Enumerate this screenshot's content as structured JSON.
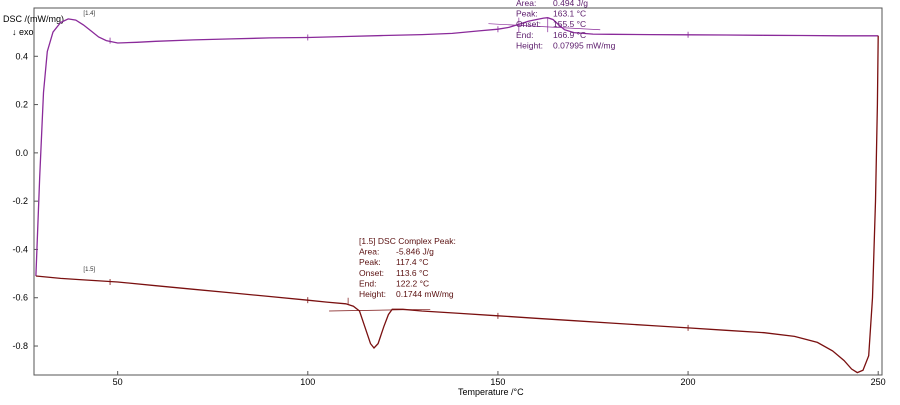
{
  "chart_data": {
    "type": "line",
    "title": "",
    "ylabel": "DSC /(mW/mg)",
    "exo_label": "↓ exo",
    "xlabel": "Temperature /°C",
    "xlim": [
      28,
      251
    ],
    "ylim": [
      -0.92,
      0.6
    ],
    "xticks": [
      50,
      100,
      150,
      200,
      250
    ],
    "yticks": [
      0.4,
      0.2,
      0.0,
      -0.2,
      -0.4,
      -0.6,
      -0.8
    ],
    "ytick_labels": [
      "0.4",
      "0.2",
      "0.0",
      "-0.2",
      "-0.4",
      "-0.6",
      "-0.8"
    ],
    "grid": false,
    "series": [
      {
        "tag": "[1.4]",
        "color": "#8a2a9a",
        "points": [
          [
            28.5,
            -0.51
          ],
          [
            29.5,
            -0.1
          ],
          [
            30.5,
            0.25
          ],
          [
            31.5,
            0.42
          ],
          [
            33,
            0.5
          ],
          [
            35,
            0.54
          ],
          [
            37,
            0.555
          ],
          [
            39,
            0.55
          ],
          [
            41,
            0.53
          ],
          [
            43,
            0.505
          ],
          [
            45,
            0.48
          ],
          [
            47,
            0.465
          ],
          [
            50,
            0.455
          ],
          [
            55,
            0.458
          ],
          [
            60,
            0.462
          ],
          [
            70,
            0.468
          ],
          [
            80,
            0.472
          ],
          [
            90,
            0.476
          ],
          [
            100,
            0.478
          ],
          [
            110,
            0.482
          ],
          [
            120,
            0.486
          ],
          [
            130,
            0.49
          ],
          [
            138,
            0.495
          ],
          [
            145,
            0.505
          ],
          [
            150,
            0.512
          ],
          [
            153,
            0.52
          ],
          [
            156,
            0.535
          ],
          [
            158,
            0.545
          ],
          [
            160,
            0.552
          ],
          [
            162,
            0.558
          ],
          [
            163.1,
            0.56
          ],
          [
            164.5,
            0.552
          ],
          [
            166,
            0.53
          ],
          [
            167.5,
            0.51
          ],
          [
            170,
            0.498
          ],
          [
            175,
            0.492
          ],
          [
            180,
            0.491
          ],
          [
            190,
            0.49
          ],
          [
            200,
            0.489
          ],
          [
            210,
            0.488
          ],
          [
            220,
            0.487
          ],
          [
            230,
            0.486
          ],
          [
            240,
            0.485
          ],
          [
            248,
            0.485
          ],
          [
            250,
            0.485
          ]
        ]
      },
      {
        "tag": "[1.5]",
        "color": "#7a1010",
        "points": [
          [
            28.5,
            -0.51
          ],
          [
            35,
            -0.52
          ],
          [
            40,
            -0.525
          ],
          [
            50,
            -0.535
          ],
          [
            60,
            -0.55
          ],
          [
            70,
            -0.565
          ],
          [
            80,
            -0.58
          ],
          [
            90,
            -0.595
          ],
          [
            100,
            -0.61
          ],
          [
            105,
            -0.618
          ],
          [
            110,
            -0.625
          ],
          [
            112,
            -0.635
          ],
          [
            113.6,
            -0.655
          ],
          [
            115,
            -0.72
          ],
          [
            116.5,
            -0.79
          ],
          [
            117.4,
            -0.808
          ],
          [
            118.5,
            -0.79
          ],
          [
            120,
            -0.72
          ],
          [
            121.2,
            -0.67
          ],
          [
            122.2,
            -0.648
          ],
          [
            125,
            -0.648
          ],
          [
            130,
            -0.655
          ],
          [
            140,
            -0.665
          ],
          [
            150,
            -0.675
          ],
          [
            160,
            -0.685
          ],
          [
            170,
            -0.695
          ],
          [
            180,
            -0.705
          ],
          [
            190,
            -0.715
          ],
          [
            200,
            -0.725
          ],
          [
            210,
            -0.735
          ],
          [
            220,
            -0.745
          ],
          [
            228,
            -0.76
          ],
          [
            234,
            -0.785
          ],
          [
            238,
            -0.82
          ],
          [
            241,
            -0.86
          ],
          [
            243,
            -0.895
          ],
          [
            244.5,
            -0.91
          ],
          [
            246,
            -0.9
          ],
          [
            247.5,
            -0.84
          ],
          [
            248.5,
            -0.6
          ],
          [
            249.3,
            -0.2
          ],
          [
            249.8,
            0.2
          ],
          [
            250,
            0.485
          ]
        ]
      }
    ],
    "annotations": [
      {
        "series": "[1.4]",
        "header": "",
        "rows": [
          {
            "label": "Area:",
            "value": "0.494 J/g"
          },
          {
            "label": "Peak:",
            "value": "163.1 °C"
          },
          {
            "label": "Onset:",
            "value": "155.5 °C"
          },
          {
            "label": "End:",
            "value": "166.9 °C"
          },
          {
            "label": "Height:",
            "value": "0.07995 mW/mg"
          }
        ],
        "onset": 155.5,
        "end": 166.9,
        "peak": 163.1
      },
      {
        "series": "[1.5]",
        "header": "[1.5] DSC Complex Peak:",
        "rows": [
          {
            "label": "Area:",
            "value": "-5.846 J/g"
          },
          {
            "label": "Peak:",
            "value": "117.4 °C"
          },
          {
            "label": "Onset:",
            "value": "113.6 °C"
          },
          {
            "label": "End:",
            "value": "122.2 °C"
          },
          {
            "label": "Height:",
            "value": "0.1744 mW/mg"
          }
        ],
        "onset": 113.6,
        "end": 122.2,
        "peak": 117.4
      }
    ]
  }
}
